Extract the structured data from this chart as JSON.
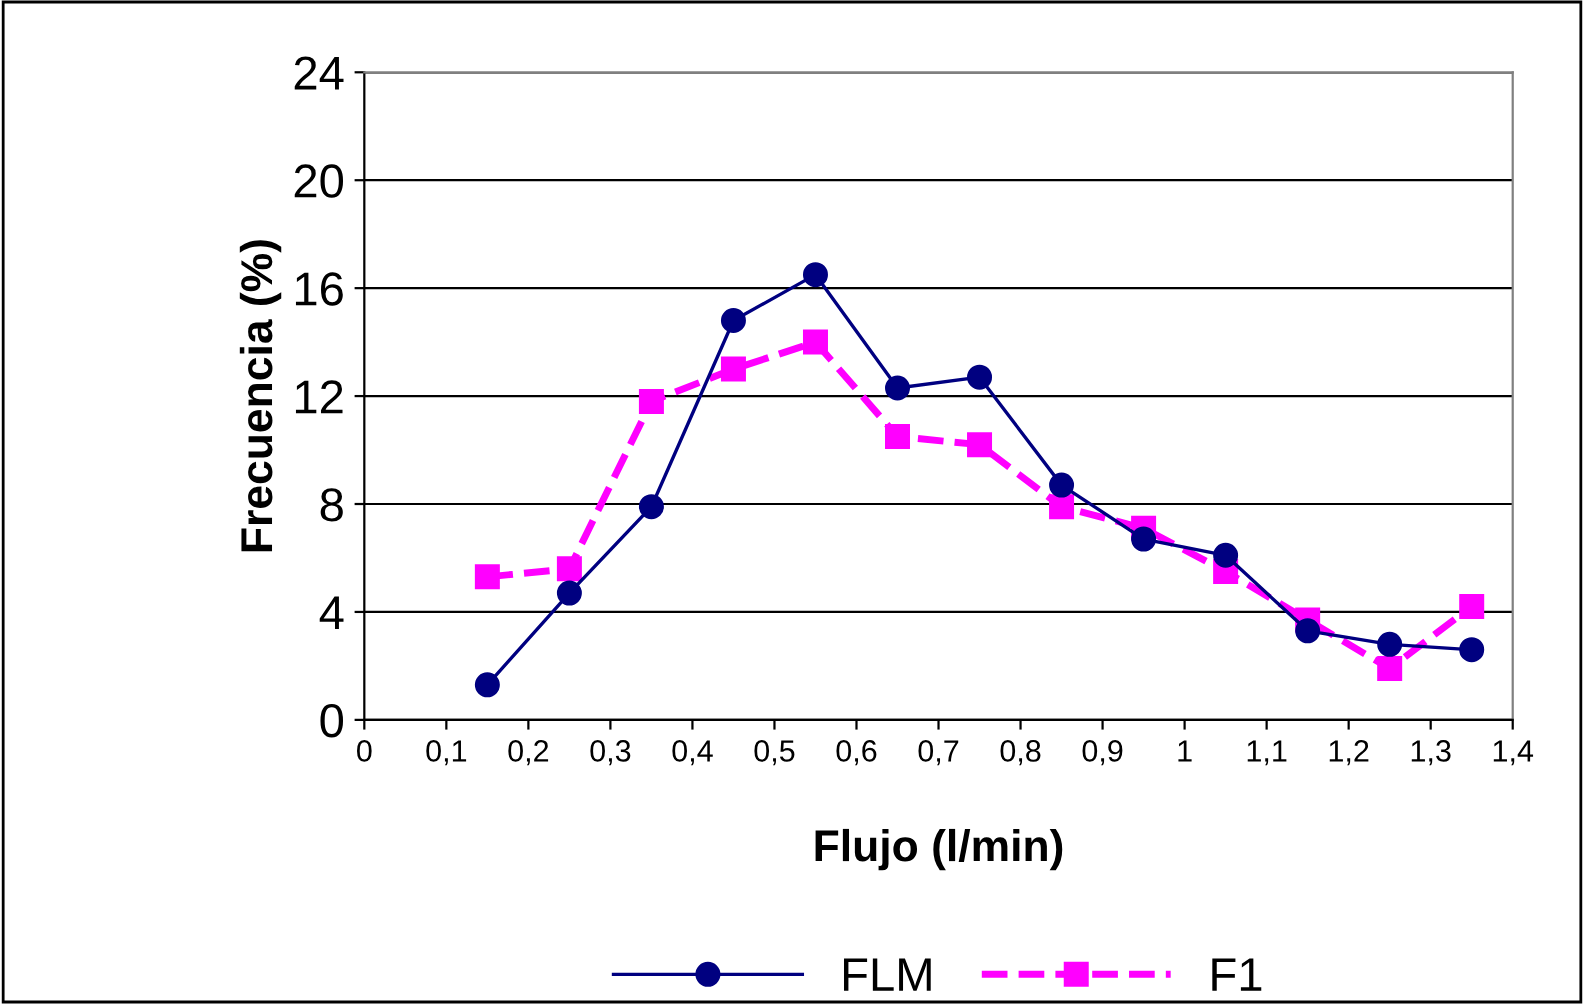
{
  "chart_data": {
    "type": "line",
    "xlabel": "Flujo (l/min)",
    "ylabel": "Frecuencia (%)",
    "xlim": [
      0,
      1.4
    ],
    "ylim": [
      0,
      24
    ],
    "xticks": [
      0,
      {
        "value": 0.1,
        "label": "0,1"
      },
      {
        "value": 0.2,
        "label": "0,2"
      },
      {
        "value": 0.3,
        "label": "0,3"
      },
      {
        "value": 0.4,
        "label": "0,4"
      },
      {
        "value": 0.5,
        "label": "0,5"
      },
      {
        "value": 0.6,
        "label": "0,6"
      },
      {
        "value": 0.7,
        "label": "0,7"
      },
      {
        "value": 0.8,
        "label": "0,8"
      },
      {
        "value": 0.9,
        "label": "0,9"
      },
      1,
      {
        "value": 1.1,
        "label": "1,1"
      },
      {
        "value": 1.2,
        "label": "1,2"
      },
      {
        "value": 1.3,
        "label": "1,3"
      },
      {
        "value": 1.4,
        "label": "1,4"
      }
    ],
    "yticks": [
      0,
      4,
      8,
      12,
      16,
      20,
      24
    ],
    "grid": "y",
    "legend": "bottom",
    "x": [
      0.15,
      0.25,
      0.35,
      0.45,
      0.55,
      0.65,
      0.75,
      0.85,
      0.95,
      1.05,
      1.15,
      1.25,
      1.35
    ],
    "series": [
      {
        "name": "FLM",
        "color": "#000080",
        "marker": "circle",
        "line_style": "solid",
        "values": [
          1.3,
          4.7,
          7.9,
          14.8,
          16.5,
          12.3,
          12.7,
          8.7,
          6.7,
          6.1,
          3.3,
          2.8,
          2.6
        ]
      },
      {
        "name": "F1",
        "color": "#ff00ff",
        "marker": "square",
        "line_style": "dashed",
        "values": [
          5.3,
          5.6,
          11.8,
          13.0,
          14.0,
          10.5,
          10.2,
          7.9,
          7.1,
          5.5,
          3.7,
          1.9,
          4.2
        ]
      }
    ]
  }
}
